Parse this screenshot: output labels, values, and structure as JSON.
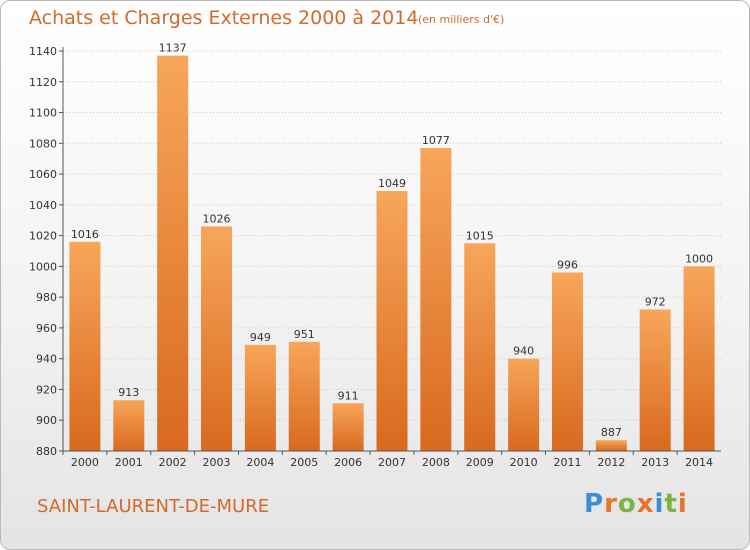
{
  "header": {
    "title": "Achats et Charges Externes 2000 à 2014",
    "subtitle": "(en milliers d'€)"
  },
  "footer": {
    "place": "SAINT-LAURENT-DE-MURE",
    "logo_text": "Proxiti"
  },
  "colors": {
    "bar_light": "#f7a65a",
    "bar_dark": "#d9691e",
    "title": "#d3692a"
  },
  "chart_data": {
    "type": "bar",
    "title": "Achats et Charges Externes 2000 à 2014",
    "subtitle": "(en milliers d'€)",
    "categories": [
      "2000",
      "2001",
      "2002",
      "2003",
      "2004",
      "2005",
      "2006",
      "2007",
      "2008",
      "2009",
      "2010",
      "2011",
      "2012",
      "2013",
      "2014"
    ],
    "values": [
      1016,
      913,
      1137,
      1026,
      949,
      951,
      911,
      1049,
      1077,
      1015,
      940,
      996,
      887,
      972,
      1000
    ],
    "ylim": [
      880,
      1140
    ],
    "yticks": [
      880,
      900,
      920,
      940,
      960,
      980,
      1000,
      1020,
      1040,
      1060,
      1080,
      1100,
      1120,
      1140
    ],
    "grid": true,
    "xlabel": "",
    "ylabel": ""
  }
}
